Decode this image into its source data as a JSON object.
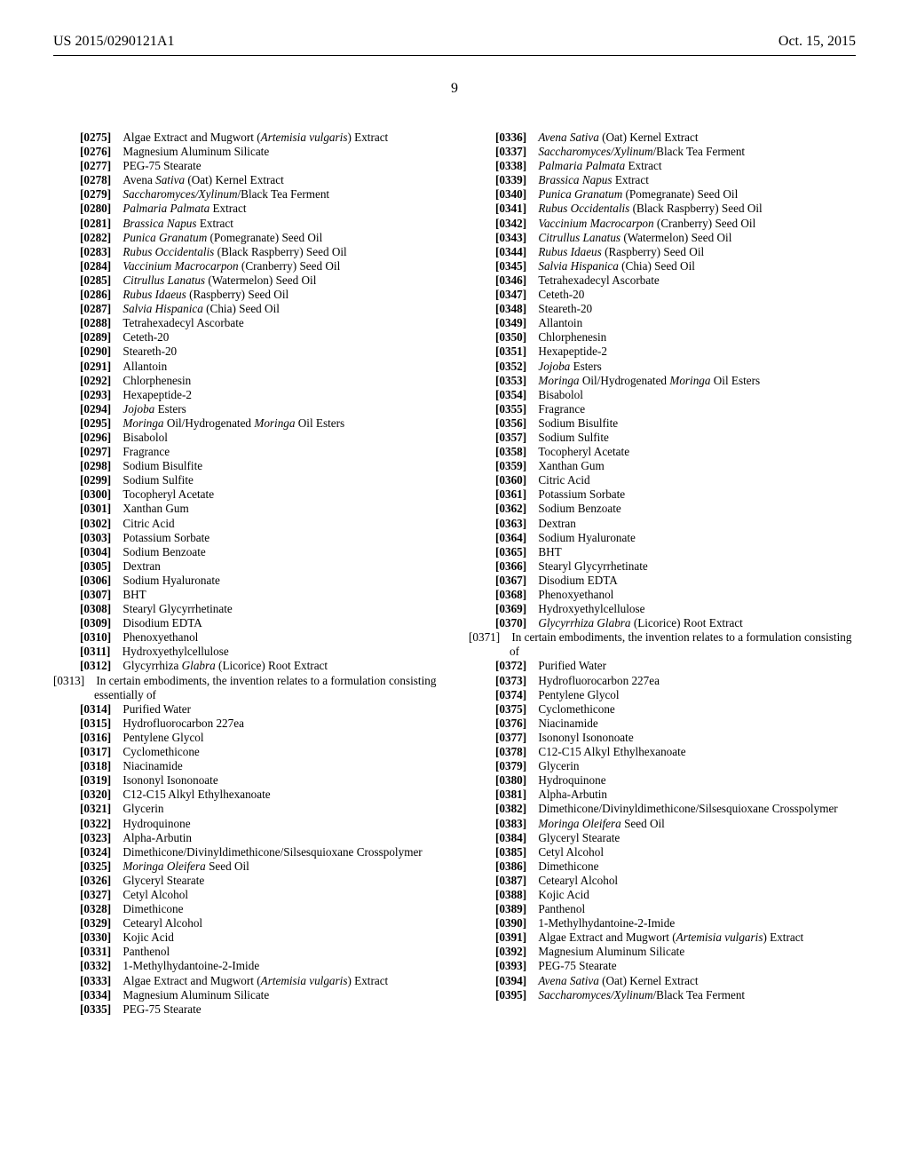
{
  "header": {
    "left": "US 2015/0290121A1",
    "right": "Oct. 15, 2015"
  },
  "page_number": "9",
  "left_col": [
    {
      "n": "[0275]",
      "t": "Algae Extract and Mugwort (",
      "i": "Artemisia vulgaris",
      "t2": ") Extract",
      "wrap": true
    },
    {
      "n": "[0276]",
      "t": "Magnesium Aluminum Silicate"
    },
    {
      "n": "[0277]",
      "t": "PEG-75 Stearate"
    },
    {
      "n": "[0278]",
      "t": "Avena ",
      "i": "Sativa",
      "t2": " (Oat) Kernel Extract"
    },
    {
      "n": "[0279]",
      "i": "Saccharomyces/Xylinum",
      "t2": "/Black Tea Ferment"
    },
    {
      "n": "[0280]",
      "i": "Palmaria Palmata",
      "t2": " Extract"
    },
    {
      "n": "[0281]",
      "i": "Brassica Napus",
      "t2": " Extract"
    },
    {
      "n": "[0282]",
      "i": "Punica Granatum",
      "t2": " (Pomegranate) Seed Oil"
    },
    {
      "n": "[0283]",
      "i": "Rubus Occidentalis",
      "t2": " (Black Raspberry) Seed Oil"
    },
    {
      "n": "[0284]",
      "i": "Vaccinium Macrocarpon",
      "t2": " (Cranberry) Seed Oil"
    },
    {
      "n": "[0285]",
      "i": "Citrullus Lanatus",
      "t2": " (Watermelon) Seed Oil"
    },
    {
      "n": "[0286]",
      "i": "Rubus Idaeus",
      "t2": " (Raspberry) Seed Oil"
    },
    {
      "n": "[0287]",
      "i": "Salvia Hispanica",
      "t2": " (Chia) Seed Oil"
    },
    {
      "n": "[0288]",
      "t": "Tetrahexadecyl Ascorbate"
    },
    {
      "n": "[0289]",
      "t": "Ceteth-20"
    },
    {
      "n": "[0290]",
      "t": "Steareth-20"
    },
    {
      "n": "[0291]",
      "t": "Allantoin"
    },
    {
      "n": "[0292]",
      "t": "Chlorphenesin"
    },
    {
      "n": "[0293]",
      "t": "Hexapeptide-2"
    },
    {
      "n": "[0294]",
      "i": "Jojoba",
      "t2": " Esters"
    },
    {
      "n": "[0295]",
      "i": "Moringa",
      "t2": " Oil/Hydrogenated ",
      "i2": "Moringa",
      "t3": " Oil Esters"
    },
    {
      "n": "[0296]",
      "t": "Bisabolol"
    },
    {
      "n": "[0297]",
      "t": "Fragrance"
    },
    {
      "n": "[0298]",
      "t": "Sodium Bisulfite"
    },
    {
      "n": "[0299]",
      "t": "Sodium Sulfite"
    },
    {
      "n": "[0300]",
      "t": "Tocopheryl Acetate"
    },
    {
      "n": "[0301]",
      "t": "Xanthan Gum"
    },
    {
      "n": "[0302]",
      "t": "Citric Acid"
    },
    {
      "n": "[0303]",
      "t": "Potassium Sorbate"
    },
    {
      "n": "[0304]",
      "t": "Sodium Benzoate"
    },
    {
      "n": "[0305]",
      "t": "Dextran"
    },
    {
      "n": "[0306]",
      "t": "Sodium Hyaluronate"
    },
    {
      "n": "[0307]",
      "t": "BHT"
    },
    {
      "n": "[0308]",
      "t": "Stearyl Glycyrrhetinate"
    },
    {
      "n": "[0309]",
      "t": "Disodium EDTA"
    },
    {
      "n": "[0310]",
      "t": "Phenoxyethanol"
    },
    {
      "n": "[0311]",
      "t": "Hydroxyethylcellulose"
    },
    {
      "n": "[0312]",
      "t": "Glycyrrhiza ",
      "i": "Glabra",
      "t2": " (Licorice) Root Extract"
    },
    {
      "n": "[0313]",
      "t": "In certain embodiments, the invention relates to a formulation consisting essentially of",
      "outdent": true
    },
    {
      "n": "[0314]",
      "t": "Purified Water"
    },
    {
      "n": "[0315]",
      "t": "Hydrofluorocarbon 227ea"
    },
    {
      "n": "[0316]",
      "t": "Pentylene Glycol"
    },
    {
      "n": "[0317]",
      "t": "Cyclomethicone"
    },
    {
      "n": "[0318]",
      "t": "Niacinamide"
    },
    {
      "n": "[0319]",
      "t": "Isononyl Isononoate"
    },
    {
      "n": "[0320]",
      "t": "C12-C15 Alkyl Ethylhexanoate"
    },
    {
      "n": "[0321]",
      "t": "Glycerin"
    },
    {
      "n": "[0322]",
      "t": "Hydroquinone"
    },
    {
      "n": "[0323]",
      "t": "Alpha-Arbutin"
    },
    {
      "n": "[0324]",
      "t": "Dimethicone/Divinyldimethicone/Silsesquioxane Crosspolymer",
      "wrap": true
    },
    {
      "n": "[0325]",
      "i": "Moringa Oleifera",
      "t2": " Seed Oil"
    },
    {
      "n": "[0326]",
      "t": "Glyceryl Stearate"
    },
    {
      "n": "[0327]",
      "t": "Cetyl Alcohol"
    },
    {
      "n": "[0328]",
      "t": "Dimethicone"
    },
    {
      "n": "[0329]",
      "t": "Cetearyl Alcohol"
    },
    {
      "n": "[0330]",
      "t": "Kojic Acid"
    },
    {
      "n": "[0331]",
      "t": "Panthenol"
    },
    {
      "n": "[0332]",
      "t": "1-Methylhydantoine-2-Imide"
    },
    {
      "n": "[0333]",
      "t": "Algae Extract and Mugwort (",
      "i": "Artemisia vulgaris",
      "t2": ") Extract",
      "wrap": true
    },
    {
      "n": "[0334]",
      "t": "Magnesium Aluminum Silicate"
    }
  ],
  "right_col": [
    {
      "n": "[0335]",
      "t": "PEG-75 Stearate"
    },
    {
      "n": "[0336]",
      "i": "Avena Sativa",
      "t2": " (Oat) Kernel Extract"
    },
    {
      "n": "[0337]",
      "i": "Saccharomyces/Xylinum",
      "t2": "/Black Tea Ferment"
    },
    {
      "n": "[0338]",
      "i": "Palmaria Palmata",
      "t2": " Extract"
    },
    {
      "n": "[0339]",
      "i": "Brassica Napus",
      "t2": " Extract"
    },
    {
      "n": "[0340]",
      "i": "Punica Granatum",
      "t2": " (Pomegranate) Seed Oil"
    },
    {
      "n": "[0341]",
      "i": "Rubus Occidentalis",
      "t2": " (Black Raspberry) Seed Oil"
    },
    {
      "n": "[0342]",
      "i": "Vaccinium Macrocarpon",
      "t2": " (Cranberry) Seed Oil"
    },
    {
      "n": "[0343]",
      "i": "Citrullus Lanatus",
      "t2": " (Watermelon) Seed Oil"
    },
    {
      "n": "[0344]",
      "i": "Rubus Idaeus",
      "t2": " (Raspberry) Seed Oil"
    },
    {
      "n": "[0345]",
      "i": "Salvia Hispanica",
      "t2": " (Chia) Seed Oil"
    },
    {
      "n": "[0346]",
      "t": "Tetrahexadecyl Ascorbate"
    },
    {
      "n": "[0347]",
      "t": "Ceteth-20"
    },
    {
      "n": "[0348]",
      "t": "Steareth-20"
    },
    {
      "n": "[0349]",
      "t": "Allantoin"
    },
    {
      "n": "[0350]",
      "t": "Chlorphenesin"
    },
    {
      "n": "[0351]",
      "t": "Hexapeptide-2"
    },
    {
      "n": "[0352]",
      "i": "Jojoba",
      "t2": " Esters"
    },
    {
      "n": "[0353]",
      "i": "Moringa",
      "t2": " Oil/Hydrogenated ",
      "i2": "Moringa",
      "t3": " Oil Esters"
    },
    {
      "n": "[0354]",
      "t": "Bisabolol"
    },
    {
      "n": "[0355]",
      "t": "Fragrance"
    },
    {
      "n": "[0356]",
      "t": "Sodium Bisulfite"
    },
    {
      "n": "[0357]",
      "t": "Sodium Sulfite"
    },
    {
      "n": "[0358]",
      "t": "Tocopheryl Acetate"
    },
    {
      "n": "[0359]",
      "t": "Xanthan Gum"
    },
    {
      "n": "[0360]",
      "t": "Citric Acid"
    },
    {
      "n": "[0361]",
      "t": "Potassium Sorbate"
    },
    {
      "n": "[0362]",
      "t": "Sodium Benzoate"
    },
    {
      "n": "[0363]",
      "t": "Dextran"
    },
    {
      "n": "[0364]",
      "t": "Sodium Hyaluronate"
    },
    {
      "n": "[0365]",
      "t": "BHT"
    },
    {
      "n": "[0366]",
      "t": "Stearyl Glycyrrhetinate"
    },
    {
      "n": "[0367]",
      "t": "Disodium EDTA"
    },
    {
      "n": "[0368]",
      "t": "Phenoxyethanol"
    },
    {
      "n": "[0369]",
      "t": "Hydroxyethylcellulose"
    },
    {
      "n": "[0370]",
      "i": "Glycyrrhiza Glabra",
      "t2": " (Licorice) Root Extract"
    },
    {
      "n": "[0371]",
      "t": "In certain embodiments, the invention relates to a formulation consisting of",
      "outdent": true
    },
    {
      "n": "[0372]",
      "t": "Purified Water"
    },
    {
      "n": "[0373]",
      "t": "Hydrofluorocarbon 227ea"
    },
    {
      "n": "[0374]",
      "t": "Pentylene Glycol"
    },
    {
      "n": "[0375]",
      "t": "Cyclomethicone"
    },
    {
      "n": "[0376]",
      "t": "Niacinamide"
    },
    {
      "n": "[0377]",
      "t": "Isononyl Isononoate"
    },
    {
      "n": "[0378]",
      "t": "C12-C15 Alkyl Ethylhexanoate"
    },
    {
      "n": "[0379]",
      "t": "Glycerin"
    },
    {
      "n": "[0380]",
      "t": "Hydroquinone"
    },
    {
      "n": "[0381]",
      "t": "Alpha-Arbutin"
    },
    {
      "n": "[0382]",
      "t": "Dimethicone/Divinyldimethicone/Silsesquioxane Crosspolymer",
      "wrap": true
    },
    {
      "n": "[0383]",
      "i": "Moringa Oleifera",
      "t2": " Seed Oil"
    },
    {
      "n": "[0384]",
      "t": "Glyceryl Stearate"
    },
    {
      "n": "[0385]",
      "t": "Cetyl Alcohol"
    },
    {
      "n": "[0386]",
      "t": "Dimethicone"
    },
    {
      "n": "[0387]",
      "t": "Cetearyl Alcohol"
    },
    {
      "n": "[0388]",
      "t": "Kojic Acid"
    },
    {
      "n": "[0389]",
      "t": "Panthenol"
    },
    {
      "n": "[0390]",
      "t": "1-Methylhydantoine-2-Imide"
    },
    {
      "n": "[0391]",
      "t": "Algae Extract and Mugwort (",
      "i": "Artemisia vulgaris",
      "t2": ") Extract",
      "wrap": true
    },
    {
      "n": "[0392]",
      "t": "Magnesium Aluminum Silicate"
    },
    {
      "n": "[0393]",
      "t": "PEG-75 Stearate"
    },
    {
      "n": "[0394]",
      "i": "Avena Sativa",
      "t2": " (Oat) Kernel Extract"
    },
    {
      "n": "[0395]",
      "i": "Saccharomyces/Xylinum",
      "t2": "/Black Tea Ferment"
    }
  ]
}
